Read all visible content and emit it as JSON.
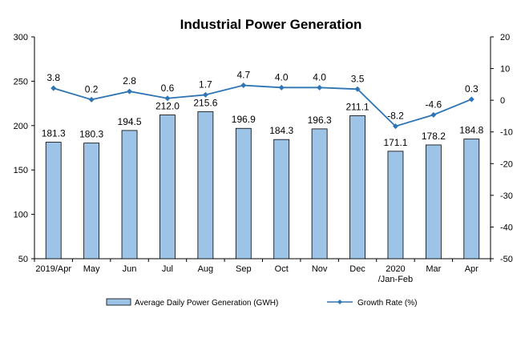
{
  "chart_data": {
    "type": "bar+line",
    "title": "Industrial Power Generation",
    "categories": [
      "2019/Apr",
      "May",
      "Jun",
      "Jul",
      "Aug",
      "Sep",
      "Oct",
      "Nov",
      "Dec",
      "2020\n/Jan-Feb",
      "Mar",
      "Apr"
    ],
    "series": [
      {
        "name": "Average Daily Power Generation (GWH)",
        "type": "bar",
        "axis": "left",
        "color": "#9dc3e6",
        "values": [
          181.3,
          180.3,
          194.5,
          212.0,
          215.6,
          196.9,
          184.3,
          196.3,
          211.1,
          171.1,
          178.2,
          184.8
        ]
      },
      {
        "name": "Growth Rate (%)",
        "type": "line",
        "axis": "right",
        "color": "#2e75b6",
        "values": [
          3.8,
          0.2,
          2.8,
          0.6,
          1.7,
          4.7,
          4.0,
          4.0,
          3.5,
          -8.2,
          -4.6,
          0.3
        ]
      }
    ],
    "y_left": {
      "min": 50,
      "max": 300,
      "ticks": [
        50,
        100,
        150,
        200,
        250,
        300
      ]
    },
    "y_right": {
      "min": -50,
      "max": 20,
      "ticks": [
        -50,
        -40,
        -30,
        -20,
        -10,
        0,
        10,
        20
      ]
    },
    "legend_position": "bottom",
    "grid": false
  }
}
